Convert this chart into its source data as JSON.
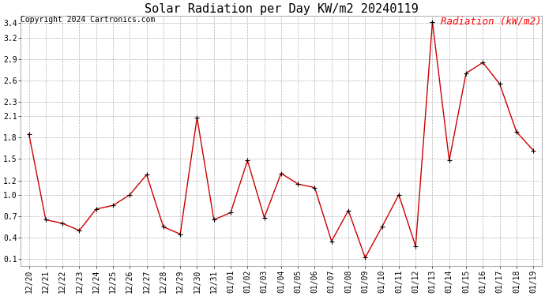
{
  "title": "Solar Radiation per Day KW/m2 20240119",
  "copyright": "Copyright 2024 Cartronics.com",
  "legend_label": "Radiation (kW/m2)",
  "dates": [
    "12/20",
    "12/21",
    "12/22",
    "12/23",
    "12/24",
    "12/25",
    "12/26",
    "12/27",
    "12/28",
    "12/29",
    "12/30",
    "12/31",
    "01/01",
    "01/02",
    "01/03",
    "01/04",
    "01/05",
    "01/06",
    "01/07",
    "01/08",
    "01/09",
    "01/10",
    "01/11",
    "01/12",
    "01/13",
    "01/14",
    "01/15",
    "01/16",
    "01/17",
    "01/18",
    "01/19"
  ],
  "values": [
    1.85,
    0.65,
    0.6,
    0.5,
    0.8,
    0.85,
    1.0,
    1.28,
    0.55,
    0.45,
    2.08,
    0.65,
    0.75,
    1.48,
    0.68,
    1.3,
    1.15,
    1.1,
    0.35,
    0.78,
    0.12,
    0.55,
    1.0,
    0.28,
    3.42,
    1.48,
    2.7,
    2.85,
    2.55,
    1.88,
    1.62
  ],
  "ylim": [
    0.0,
    3.5
  ],
  "yticks": [
    0.1,
    0.4,
    0.7,
    1.0,
    1.2,
    1.5,
    1.8,
    2.1,
    2.3,
    2.6,
    2.9,
    3.2,
    3.4
  ],
  "line_color": "#cc0000",
  "marker": "+",
  "marker_color": "#000000",
  "grid_color": "#aaaaaa",
  "bg_color": "#ffffff",
  "title_fontsize": 11,
  "copyright_fontsize": 7,
  "legend_fontsize": 9,
  "tick_fontsize": 7
}
